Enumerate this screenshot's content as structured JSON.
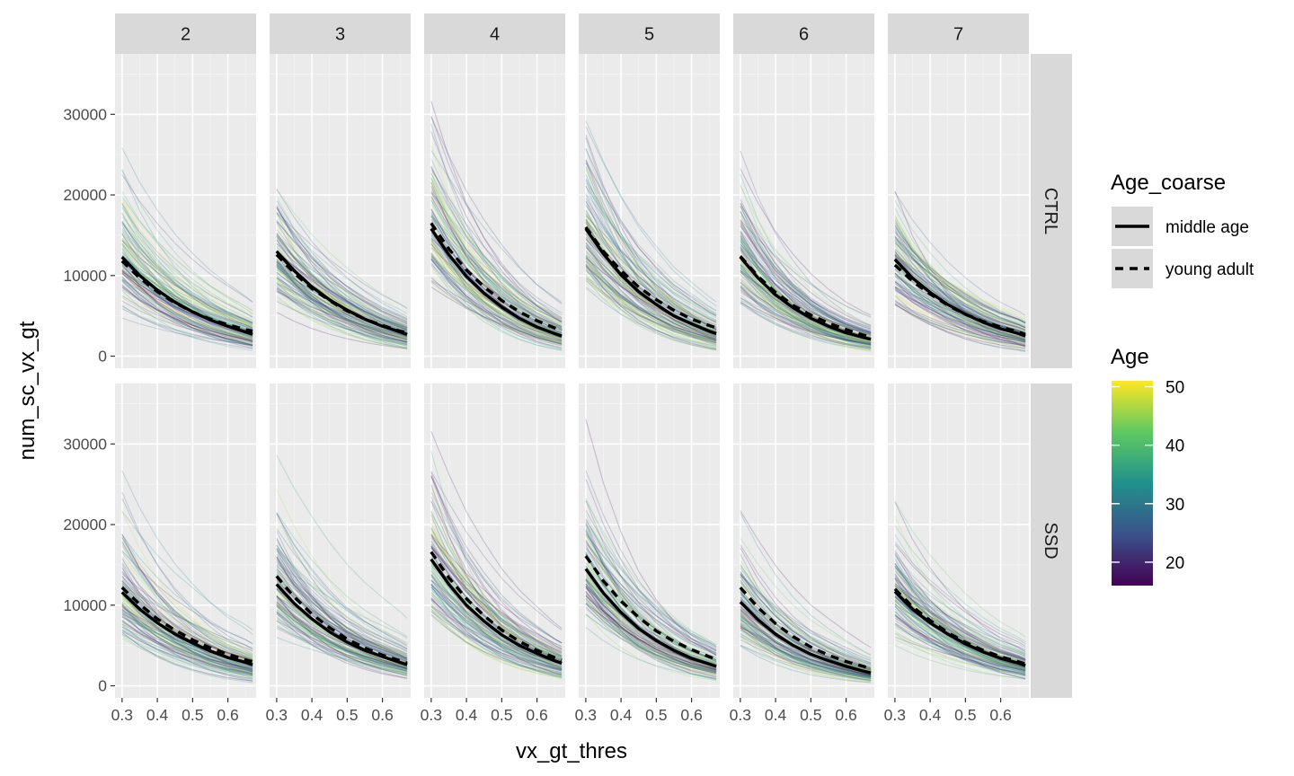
{
  "chart_data": {
    "type": "line",
    "facet_cols": [
      "2",
      "3",
      "4",
      "5",
      "6",
      "7"
    ],
    "facet_rows": [
      "CTRL",
      "SSD"
    ],
    "xlabel": "vx_gt_thres",
    "ylabel": "num_sc_vx_gt",
    "x_ticks": [
      0.3,
      0.4,
      0.5,
      0.6
    ],
    "x_tick_labels": [
      "0.3",
      "0.4",
      "0.5",
      "0.6"
    ],
    "y_ticks": [
      0,
      10000,
      20000,
      30000
    ],
    "y_tick_labels": [
      "0",
      "10000",
      "20000",
      "30000"
    ],
    "xlim": [
      0.28,
      0.68
    ],
    "ylim": [
      -1500,
      37500
    ],
    "grid": true,
    "background": "#ebebeb",
    "strip_fill": "#d9d9d9",
    "legend": {
      "placement": "right",
      "linetype_title": "Age_coarse",
      "linetype_entries": [
        {
          "label": "middle age",
          "linetype": "solid"
        },
        {
          "label": "young adult",
          "linetype": "dashed"
        }
      ],
      "colorbar_title": "Age",
      "colorbar_ticks": [
        20,
        30,
        40,
        50
      ],
      "colorbar_tick_labels": [
        "20",
        "30",
        "40",
        "50"
      ],
      "colorbar_range": [
        16,
        51
      ],
      "colorbar_palette": [
        "#440154",
        "#3b528b",
        "#21918c",
        "#5ec962",
        "#fde725"
      ]
    },
    "summary_lines": {
      "x": [
        0.3,
        0.35,
        0.4,
        0.45,
        0.5,
        0.55,
        0.6,
        0.65,
        0.67
      ],
      "panels": [
        {
          "col": "2",
          "row": "CTRL",
          "middle age": [
            12300,
            10000,
            8200,
            6700,
            5500,
            4500,
            3700,
            3000,
            2700
          ],
          "young adult": [
            11800,
            9700,
            8000,
            6600,
            5500,
            4600,
            3900,
            3300,
            3100
          ]
        },
        {
          "col": "3",
          "row": "CTRL",
          "middle age": [
            13000,
            10600,
            8600,
            7000,
            5700,
            4600,
            3700,
            3000,
            2700
          ],
          "young adult": [
            12600,
            10300,
            8400,
            6900,
            5600,
            4600,
            3800,
            3100,
            2900
          ]
        },
        {
          "col": "4",
          "row": "CTRL",
          "middle age": [
            15800,
            12600,
            9900,
            7800,
            6100,
            4700,
            3600,
            2800,
            2500
          ],
          "young adult": [
            16500,
            13300,
            10700,
            8600,
            6900,
            5500,
            4400,
            3500,
            3200
          ]
        },
        {
          "col": "5",
          "row": "CTRL",
          "middle age": [
            15800,
            12700,
            10100,
            8000,
            6400,
            5000,
            4000,
            3100,
            2800
          ],
          "young adult": [
            16000,
            13000,
            10600,
            8600,
            7000,
            5700,
            4600,
            3800,
            3500
          ]
        },
        {
          "col": "6",
          "row": "CTRL",
          "middle age": [
            12300,
            9700,
            7600,
            6000,
            4700,
            3700,
            2900,
            2300,
            2100
          ],
          "young adult": [
            12400,
            9900,
            7900,
            6300,
            5100,
            4100,
            3300,
            2600,
            2400
          ]
        },
        {
          "col": "7",
          "row": "CTRL",
          "middle age": [
            12000,
            9700,
            7900,
            6400,
            5200,
            4200,
            3400,
            2800,
            2500
          ],
          "young adult": [
            11300,
            9300,
            7700,
            6300,
            5200,
            4300,
            3600,
            3000,
            2700
          ]
        },
        {
          "col": "2",
          "row": "SSD",
          "middle age": [
            11600,
            9500,
            7800,
            6400,
            5300,
            4300,
            3500,
            2900,
            2600
          ],
          "young adult": [
            12200,
            10100,
            8300,
            6900,
            5700,
            4700,
            3900,
            3200,
            3000
          ]
        },
        {
          "col": "3",
          "row": "SSD",
          "middle age": [
            12600,
            10200,
            8300,
            6700,
            5400,
            4400,
            3600,
            2900,
            2600
          ],
          "young adult": [
            13600,
            11000,
            8900,
            7200,
            5800,
            4700,
            3800,
            3100,
            2800
          ]
        },
        {
          "col": "4",
          "row": "SSD",
          "middle age": [
            15700,
            12600,
            10000,
            8000,
            6300,
            5000,
            4000,
            3100,
            2800
          ],
          "young adult": [
            16600,
            13400,
            10800,
            8700,
            6900,
            5500,
            4400,
            3500,
            3200
          ]
        },
        {
          "col": "5",
          "row": "SSD",
          "middle age": [
            14500,
            11500,
            9100,
            7100,
            5600,
            4400,
            3400,
            2700,
            2400
          ],
          "young adult": [
            16100,
            13000,
            10500,
            8500,
            6800,
            5500,
            4500,
            3600,
            3300
          ]
        },
        {
          "col": "6",
          "row": "SSD",
          "middle age": [
            10400,
            8200,
            6400,
            5000,
            3900,
            3100,
            2400,
            1800,
            1600
          ],
          "young adult": [
            12200,
            9700,
            7700,
            6100,
            4800,
            3800,
            3000,
            2400,
            2100
          ]
        },
        {
          "col": "7",
          "row": "SSD",
          "middle age": [
            11700,
            9500,
            7800,
            6400,
            5200,
            4200,
            3400,
            2800,
            2500
          ],
          "young adult": [
            12000,
            9800,
            8100,
            6600,
            5400,
            4400,
            3600,
            3000,
            2700
          ]
        }
      ]
    },
    "individual_lines": {
      "count_per_panel": 110,
      "age_range": [
        16,
        51
      ],
      "opacity": 0.22
    }
  }
}
